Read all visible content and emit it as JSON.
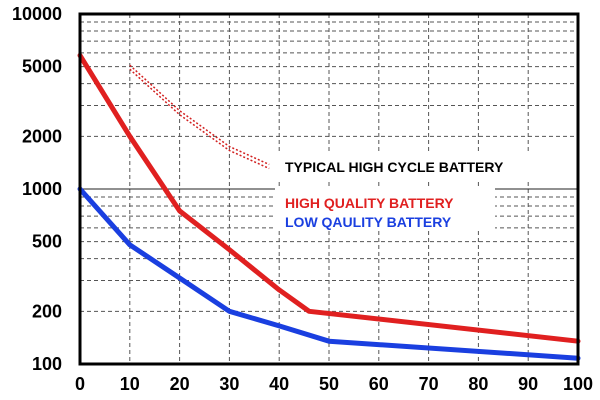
{
  "chart_data": {
    "type": "line",
    "title": "",
    "xlabel": "",
    "ylabel": "",
    "x_scale": "linear",
    "y_scale": "log",
    "xlim": [
      0,
      100
    ],
    "ylim": [
      100,
      10000
    ],
    "grid": true,
    "x_ticks": [
      "0",
      "10",
      "20",
      "30",
      "40",
      "50",
      "60",
      "70",
      "80",
      "90",
      "100"
    ],
    "y_ticks": [
      {
        "value": 10000,
        "label": "10000"
      },
      {
        "value": 5000,
        "label": "5000"
      },
      {
        "value": 2000,
        "label": "2000"
      },
      {
        "value": 1000,
        "label": "1000"
      },
      {
        "value": 500,
        "label": "500"
      },
      {
        "value": 200,
        "label": "200"
      },
      {
        "value": 100,
        "label": "100"
      }
    ],
    "series": [
      {
        "name": "TYPICAL HIGH CYCLE BATTERY",
        "color": "#d22020",
        "style": "double-dotted",
        "x": [
          10,
          20,
          30,
          38
        ],
        "y": [
          5100,
          2800,
          1750,
          1380
        ]
      },
      {
        "name": "HIGH QUALITY BATTERY",
        "color": "#e02020",
        "style": "solid",
        "x": [
          0,
          10,
          20,
          30,
          40,
          46,
          100
        ],
        "y": [
          5800,
          2000,
          750,
          450,
          265,
          200,
          135
        ]
      },
      {
        "name": "LOW QAULITY BATTERY",
        "color": "#1a3fe0",
        "style": "solid",
        "x": [
          0,
          10,
          20,
          30,
          40,
          50,
          100
        ],
        "y": [
          1000,
          480,
          310,
          200,
          165,
          135,
          108
        ]
      }
    ],
    "legend": [
      {
        "label": "TYPICAL HIGH CYCLE BATTERY",
        "color": "#000000"
      },
      {
        "label": "HIGH QUALITY BATTERY",
        "color": "#e02020"
      },
      {
        "label": "LOW QAULITY BATTERY",
        "color": "#1a3fe0"
      }
    ]
  }
}
